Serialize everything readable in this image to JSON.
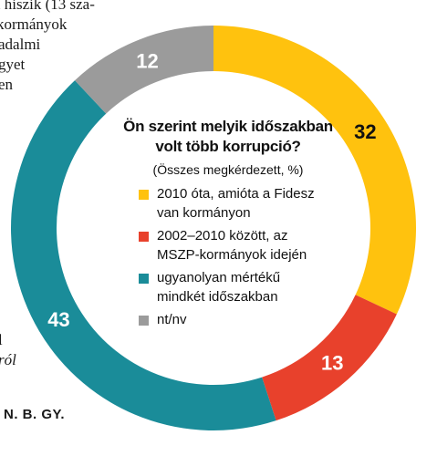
{
  "background_text": {
    "lines": [
      "n hiszik (13 sza-",
      "kormányok",
      "adalmi",
      "gyet",
      "en",
      "",
      "l",
      "ról"
    ]
  },
  "credit": "N. B. GY.",
  "chart_data": {
    "type": "pie",
    "variant": "donut",
    "title": "Ön szerint melyik időszakban volt több korrupció?",
    "subtitle": "(Összes megkérdezett, %)",
    "categories": [
      "2010 óta, amióta a Fidesz van kormányon",
      "2002–2010 között, az MSZP-kormányok idején",
      "ugyanolyan mértékű mindkét időszakban",
      "nt/nv"
    ],
    "values": [
      32,
      13,
      43,
      12
    ],
    "colors": [
      "#FFC20E",
      "#E8412C",
      "#1A8C99",
      "#9B9B9B"
    ],
    "start": "top, clockwise",
    "legend_position": "center"
  }
}
